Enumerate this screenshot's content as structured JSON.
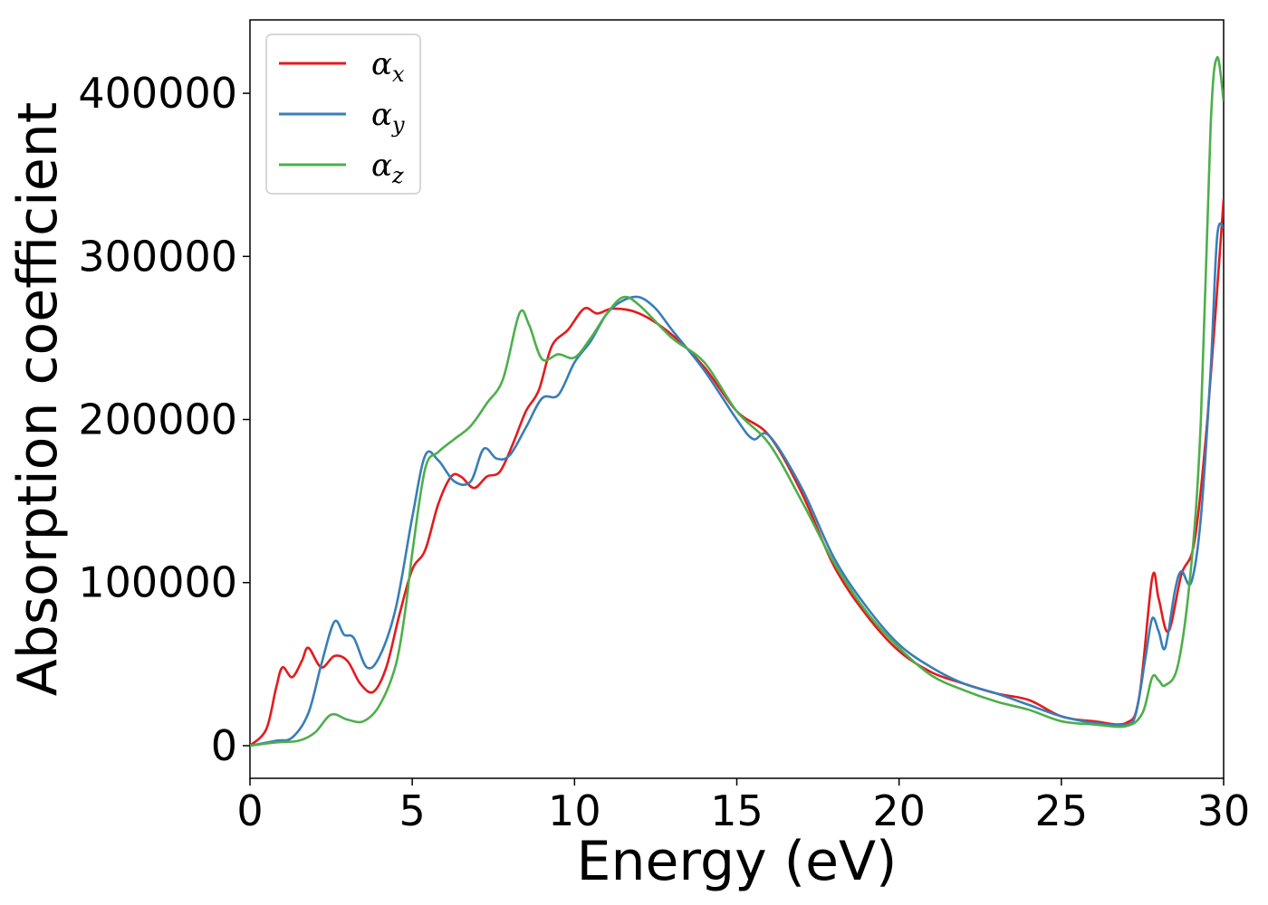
{
  "chart_data": {
    "type": "line",
    "xlabel": "Energy (eV)",
    "ylabel": "Absorption coefficient",
    "xlim": [
      0,
      30
    ],
    "ylim": [
      -20000,
      445000
    ],
    "xticks": [
      0,
      5,
      10,
      15,
      20,
      25,
      30
    ],
    "yticks": [
      0,
      100000,
      200000,
      300000,
      400000
    ],
    "xtick_labels": [
      "0",
      "5",
      "10",
      "15",
      "20",
      "25",
      "30"
    ],
    "ytick_labels": [
      "0",
      "100000",
      "200000",
      "300000",
      "400000"
    ],
    "grid": false,
    "legend_position": "top-left",
    "series": [
      {
        "name": "α_x",
        "legend_base": "α",
        "legend_sub": "x",
        "color": "#e41a1c",
        "points": [
          [
            0,
            0
          ],
          [
            0.5,
            10000
          ],
          [
            0.8,
            35000
          ],
          [
            1.0,
            48000
          ],
          [
            1.3,
            42000
          ],
          [
            1.6,
            52000
          ],
          [
            1.8,
            60000
          ],
          [
            2.2,
            48000
          ],
          [
            2.6,
            55000
          ],
          [
            3.0,
            52000
          ],
          [
            3.4,
            38000
          ],
          [
            3.8,
            33000
          ],
          [
            4.2,
            48000
          ],
          [
            4.6,
            80000
          ],
          [
            5.0,
            108000
          ],
          [
            5.4,
            120000
          ],
          [
            5.8,
            148000
          ],
          [
            6.2,
            165000
          ],
          [
            6.5,
            165000
          ],
          [
            6.9,
            158000
          ],
          [
            7.3,
            165000
          ],
          [
            7.7,
            168000
          ],
          [
            8.1,
            185000
          ],
          [
            8.5,
            205000
          ],
          [
            8.9,
            218000
          ],
          [
            9.3,
            245000
          ],
          [
            9.8,
            255000
          ],
          [
            10.3,
            268000
          ],
          [
            10.7,
            265000
          ],
          [
            11.2,
            268000
          ],
          [
            12.0,
            265000
          ],
          [
            13.0,
            252000
          ],
          [
            14.0,
            232000
          ],
          [
            15.0,
            205000
          ],
          [
            16.0,
            190000
          ],
          [
            17.0,
            155000
          ],
          [
            18.0,
            110000
          ],
          [
            19.0,
            80000
          ],
          [
            20.0,
            58000
          ],
          [
            21.0,
            45000
          ],
          [
            22.0,
            38000
          ],
          [
            23.0,
            32000
          ],
          [
            24.0,
            28000
          ],
          [
            25.0,
            18000
          ],
          [
            26.0,
            15000
          ],
          [
            27.0,
            14000
          ],
          [
            27.4,
            30000
          ],
          [
            27.8,
            103000
          ],
          [
            28.0,
            90000
          ],
          [
            28.3,
            70000
          ],
          [
            28.7,
            105000
          ],
          [
            29.1,
            125000
          ],
          [
            29.5,
            200000
          ],
          [
            30.0,
            335000
          ]
        ]
      },
      {
        "name": "α_y",
        "legend_base": "α",
        "legend_sub": "y",
        "color": "#377eb8",
        "points": [
          [
            0,
            0
          ],
          [
            0.8,
            3000
          ],
          [
            1.3,
            5000
          ],
          [
            1.8,
            20000
          ],
          [
            2.2,
            50000
          ],
          [
            2.6,
            76000
          ],
          [
            2.9,
            68000
          ],
          [
            3.2,
            66000
          ],
          [
            3.6,
            48000
          ],
          [
            4.0,
            55000
          ],
          [
            4.5,
            85000
          ],
          [
            5.0,
            140000
          ],
          [
            5.4,
            178000
          ],
          [
            5.8,
            175000
          ],
          [
            6.3,
            162000
          ],
          [
            6.8,
            162000
          ],
          [
            7.2,
            182000
          ],
          [
            7.6,
            176000
          ],
          [
            8.0,
            178000
          ],
          [
            8.5,
            195000
          ],
          [
            9.0,
            213000
          ],
          [
            9.5,
            215000
          ],
          [
            10.0,
            235000
          ],
          [
            10.5,
            248000
          ],
          [
            11.0,
            265000
          ],
          [
            11.5,
            273000
          ],
          [
            12.0,
            275000
          ],
          [
            12.5,
            268000
          ],
          [
            13.0,
            255000
          ],
          [
            14.0,
            230000
          ],
          [
            15.0,
            200000
          ],
          [
            15.5,
            188000
          ],
          [
            16.0,
            190000
          ],
          [
            17.0,
            158000
          ],
          [
            18.0,
            115000
          ],
          [
            19.0,
            85000
          ],
          [
            20.0,
            62000
          ],
          [
            21.0,
            48000
          ],
          [
            22.0,
            38000
          ],
          [
            23.0,
            32000
          ],
          [
            24.0,
            25000
          ],
          [
            25.0,
            18000
          ],
          [
            26.0,
            14000
          ],
          [
            27.0,
            13000
          ],
          [
            27.3,
            20000
          ],
          [
            27.6,
            55000
          ],
          [
            27.8,
            78000
          ],
          [
            28.0,
            70000
          ],
          [
            28.2,
            60000
          ],
          [
            28.5,
            95000
          ],
          [
            28.7,
            107000
          ],
          [
            29.0,
            100000
          ],
          [
            29.3,
            140000
          ],
          [
            29.6,
            230000
          ],
          [
            29.8,
            312000
          ],
          [
            30.0,
            318000
          ]
        ]
      },
      {
        "name": "α_z",
        "legend_base": "α",
        "legend_sub": "z",
        "color": "#4daf4a",
        "points": [
          [
            0,
            0
          ],
          [
            0.8,
            2000
          ],
          [
            1.5,
            3000
          ],
          [
            2.0,
            8000
          ],
          [
            2.5,
            19000
          ],
          [
            3.0,
            16000
          ],
          [
            3.5,
            15000
          ],
          [
            4.0,
            25000
          ],
          [
            4.5,
            50000
          ],
          [
            4.8,
            85000
          ],
          [
            5.0,
            118000
          ],
          [
            5.4,
            170000
          ],
          [
            5.8,
            180000
          ],
          [
            6.3,
            188000
          ],
          [
            6.8,
            196000
          ],
          [
            7.3,
            210000
          ],
          [
            7.8,
            225000
          ],
          [
            8.3,
            265000
          ],
          [
            8.6,
            258000
          ],
          [
            9.0,
            237000
          ],
          [
            9.5,
            240000
          ],
          [
            10.0,
            238000
          ],
          [
            10.5,
            250000
          ],
          [
            11.0,
            265000
          ],
          [
            11.5,
            275000
          ],
          [
            12.0,
            270000
          ],
          [
            13.0,
            250000
          ],
          [
            14.0,
            235000
          ],
          [
            15.0,
            205000
          ],
          [
            16.0,
            185000
          ],
          [
            17.0,
            150000
          ],
          [
            18.0,
            112000
          ],
          [
            19.0,
            82000
          ],
          [
            20.0,
            60000
          ],
          [
            21.0,
            43000
          ],
          [
            22.0,
            34000
          ],
          [
            23.0,
            27000
          ],
          [
            24.0,
            22000
          ],
          [
            25.0,
            15000
          ],
          [
            26.0,
            13000
          ],
          [
            27.0,
            12000
          ],
          [
            27.5,
            20000
          ],
          [
            27.8,
            42000
          ],
          [
            28.0,
            40000
          ],
          [
            28.2,
            37000
          ],
          [
            28.6,
            50000
          ],
          [
            29.0,
            110000
          ],
          [
            29.3,
            200000
          ],
          [
            29.6,
            380000
          ],
          [
            29.8,
            422000
          ],
          [
            30.0,
            395000
          ]
        ]
      }
    ]
  }
}
